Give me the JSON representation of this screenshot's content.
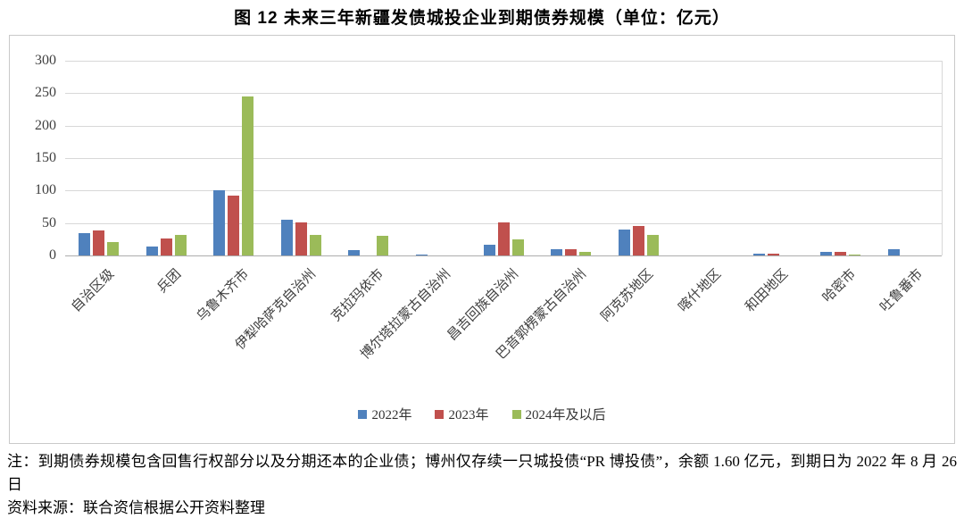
{
  "title": "图 12 未来三年新疆发债城投企业到期债券规模（单位：亿元）",
  "notes": {
    "note": "注：到期债券规模包含回售行权部分以及分期还本的企业债；博州仅存续一只城投债“PR 博投债”，余额 1.60 亿元，到期日为 2022 年 8 月 26 日",
    "source": "资料来源：联合资信根据公开资料整理"
  },
  "colors": {
    "blue": "#4F81BD",
    "red": "#C0504D",
    "green": "#9BBB59",
    "gridline": "#d8d8d8",
    "baseline": "#adadad",
    "box_border": "#c9c9c9",
    "axis_text": "#3f3f3f"
  },
  "chart_data": {
    "type": "bar",
    "title": "图 12 未来三年新疆发债城投企业到期债券规模（单位：亿元）",
    "xlabel": "",
    "ylabel": "",
    "ylim": [
      0,
      300
    ],
    "yticks": [
      0,
      50,
      100,
      150,
      200,
      250,
      300
    ],
    "grid": true,
    "legend_position": "bottom",
    "categories": [
      "自治区级",
      "兵团",
      "乌鲁木齐市",
      "伊犁哈萨克自治州",
      "克拉玛依市",
      "博尔塔拉蒙古自治州",
      "昌吉回族自治州",
      "巴音郭楞蒙古自治州",
      "阿克苏地区",
      "喀什地区",
      "和田地区",
      "哈密市",
      "吐鲁番市"
    ],
    "series": [
      {
        "name": "2022年",
        "color_key": "blue",
        "values": [
          34,
          14,
          100,
          55,
          8,
          1.6,
          17,
          9,
          40,
          0,
          3,
          5,
          9
        ]
      },
      {
        "name": "2023年",
        "color_key": "red",
        "values": [
          39,
          26,
          92,
          51,
          0,
          0,
          51,
          10,
          46,
          0,
          3,
          5,
          0
        ]
      },
      {
        "name": "2024年及以后",
        "color_key": "green",
        "values": [
          20,
          32,
          245,
          31,
          30,
          0,
          25,
          5,
          32,
          0,
          0,
          2,
          0
        ]
      }
    ]
  }
}
